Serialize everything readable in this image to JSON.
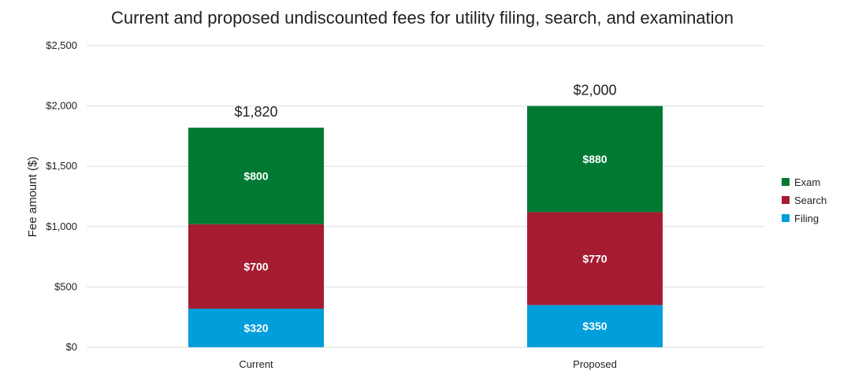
{
  "chart_data": {
    "type": "bar",
    "stacked": true,
    "title": "Current and proposed undiscounted fees for utility filing, search, and examination",
    "xlabel": "",
    "ylabel": "Fee amount ($)",
    "ylim": [
      0,
      2500
    ],
    "yticks": [
      0,
      500,
      1000,
      1500,
      2000,
      2500
    ],
    "ytick_labels": [
      "$0",
      "$500",
      "$1,000",
      "$1,500",
      "$2,000",
      "$2,500"
    ],
    "grid": true,
    "legend_position": "right",
    "categories": [
      "Current",
      "Proposed"
    ],
    "series": [
      {
        "name": "Filing",
        "values": [
          320,
          350
        ],
        "labels": [
          "$320",
          "$350"
        ],
        "color": "#009edb"
      },
      {
        "name": "Search",
        "values": [
          700,
          770
        ],
        "labels": [
          "$700",
          "$770"
        ],
        "color": "#a51c30"
      },
      {
        "name": "Exam",
        "values": [
          800,
          880
        ],
        "labels": [
          "$800",
          "$880"
        ],
        "color": "#007a33"
      }
    ],
    "totals": [
      1820,
      2000
    ],
    "total_labels": [
      "$1,820",
      "$2,000"
    ]
  }
}
